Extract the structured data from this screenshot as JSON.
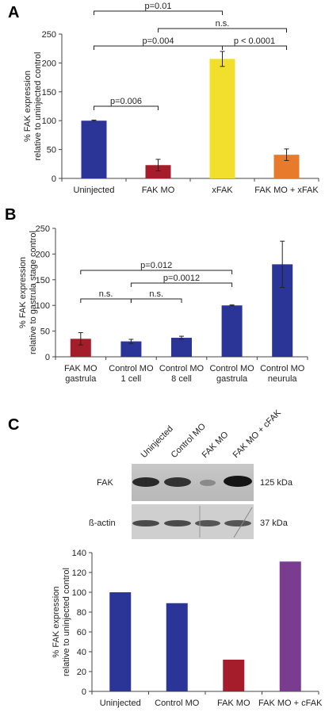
{
  "panels": [
    {
      "label": "A"
    },
    {
      "label": "B"
    },
    {
      "label": "C"
    }
  ],
  "blot": {
    "lanes": [
      "Uninjected",
      "Control MO",
      "FAK MO",
      "FAK MO + cFAK"
    ],
    "rows": [
      {
        "protein": "FAK",
        "size": "125 kDa"
      },
      {
        "protein": "ß-actin",
        "size": "37 kDa"
      }
    ]
  },
  "chart_data": [
    {
      "type": "bar",
      "panel": "A",
      "ylabel": [
        "% FAK expression",
        "relative to uninjected control"
      ],
      "ylim": [
        0,
        250
      ],
      "yticks": [
        0,
        50,
        100,
        150,
        200,
        250
      ],
      "categories": [
        [
          "Uninjected"
        ],
        [
          "FAK MO"
        ],
        [
          "xFAK"
        ],
        [
          "FAK MO + xFAK"
        ]
      ],
      "values": [
        100,
        23,
        207,
        41
      ],
      "errors": [
        1,
        10,
        13,
        10
      ],
      "colors": [
        "#2b3598",
        "#a51c2b",
        "#f2de2d",
        "#e87a2c"
      ],
      "comparisons": [
        {
          "from": 0,
          "to": 2,
          "label": "p=0.01",
          "level": 3
        },
        {
          "from": 1,
          "to": 3,
          "label": "n.s.",
          "level": 2
        },
        {
          "from": 0,
          "to": 2,
          "label": "p=0.004",
          "level": 1
        },
        {
          "from": 2,
          "to": 3,
          "label": "p < 0.0001",
          "level": 1
        },
        {
          "from": 0,
          "to": 1,
          "label": "p=0.006",
          "level": 0
        }
      ]
    },
    {
      "type": "bar",
      "panel": "B",
      "ylabel": [
        "% FAK expression",
        "relative to gastrula stage control"
      ],
      "ylim": [
        0,
        250
      ],
      "yticks": [
        0,
        50,
        100,
        150,
        200,
        250
      ],
      "categories": [
        [
          "FAK MO",
          "gastrula"
        ],
        [
          "Control MO",
          "1 cell"
        ],
        [
          "Control MO",
          "8 cell"
        ],
        [
          "Control MO",
          "gastrula"
        ],
        [
          "Control MO",
          "neurula"
        ]
      ],
      "values": [
        35,
        30,
        37,
        100,
        180
      ],
      "errors": [
        12,
        4,
        3,
        1,
        45
      ],
      "colors": [
        "#a51c2b",
        "#2b3598",
        "#2b3598",
        "#2b3598",
        "#2b3598"
      ],
      "comparisons": [
        {
          "from": 0,
          "to": 3,
          "label": "p=0.012",
          "level": 3
        },
        {
          "from": 1,
          "to": 3,
          "label": "p=0.0012",
          "level": 2
        },
        {
          "from": 0,
          "to": 1,
          "label": "n.s.",
          "level": 1
        },
        {
          "from": 1,
          "to": 2,
          "label": "n.s.",
          "level": 1
        }
      ]
    },
    {
      "type": "bar",
      "panel": "C",
      "ylabel": [
        "% FAK expression",
        "relative to uninjected control"
      ],
      "ylim": [
        0,
        140
      ],
      "yticks": [
        0,
        20,
        40,
        60,
        80,
        100,
        120,
        140
      ],
      "categories": [
        [
          "Uninjected"
        ],
        [
          "Control MO"
        ],
        [
          "FAK MO"
        ],
        [
          "FAK MO + cFAK"
        ]
      ],
      "values": [
        100,
        89,
        32,
        131
      ],
      "errors": [
        0,
        0,
        0,
        0
      ],
      "colors": [
        "#2b3598",
        "#2b3598",
        "#a51c2b",
        "#7a3c8f"
      ],
      "comparisons": []
    }
  ]
}
